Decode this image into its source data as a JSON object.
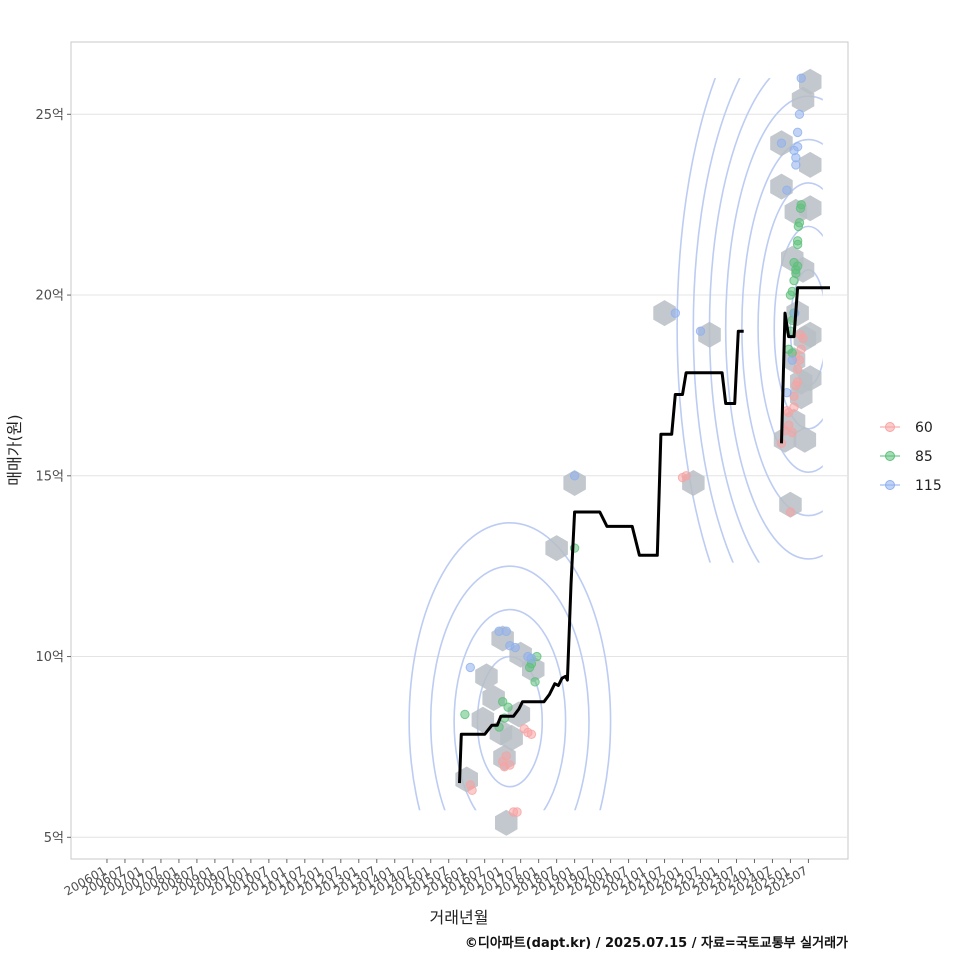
{
  "chart_data": {
    "type": "scatter",
    "title": "",
    "xlabel": "거래년월",
    "ylabel": "매매가(원)",
    "caption": "©디아파트(dapt.kr) / 2025.07.15 / 자료=국토교통부 실거래가",
    "x_tick_labels": [
      "200601",
      "200607",
      "200701",
      "200707",
      "200801",
      "200807",
      "200901",
      "200907",
      "201001",
      "201007",
      "201101",
      "201107",
      "201201",
      "201207",
      "201301",
      "201307",
      "201401",
      "201407",
      "201501",
      "201507",
      "201601",
      "201607",
      "201701",
      "201707",
      "201801",
      "201807",
      "201901",
      "201907",
      "202001",
      "202007",
      "202101",
      "202107",
      "202201",
      "202207",
      "202301",
      "202307",
      "202401",
      "202407",
      "202501",
      "202507"
    ],
    "y_ticks": [
      5,
      10,
      15,
      20,
      25
    ],
    "y_tick_labels": [
      "5억",
      "10억",
      "15억",
      "20억",
      "25억"
    ],
    "ylim": [
      4.4,
      27.0
    ],
    "xlim": [
      2005.0,
      2026.6
    ],
    "grid": true,
    "legend_position": "right",
    "colors": {
      "60": "#f8a3a3",
      "85": "#5cc07a",
      "115": "#8fb0ee",
      "trend": "#000000",
      "hex": "#b7bec4",
      "contour": "#bcccf2"
    },
    "series": [
      {
        "name": "60",
        "points": [
          [
            2016.1,
            6.45
          ],
          [
            2016.15,
            6.3
          ],
          [
            2017.0,
            7.1
          ],
          [
            2017.05,
            6.95
          ],
          [
            2017.1,
            7.25
          ],
          [
            2017.2,
            7.0
          ],
          [
            2017.3,
            5.7
          ],
          [
            2017.4,
            5.7
          ],
          [
            2017.6,
            8.0
          ],
          [
            2017.7,
            7.9
          ],
          [
            2017.8,
            7.85
          ],
          [
            2022.0,
            14.95
          ],
          [
            2022.1,
            15.0
          ],
          [
            2024.75,
            15.9
          ],
          [
            2024.85,
            16.25
          ],
          [
            2024.9,
            16.8
          ],
          [
            2024.95,
            16.75
          ],
          [
            2025.0,
            14.0
          ],
          [
            2025.05,
            16.2
          ],
          [
            2025.1,
            16.9
          ],
          [
            2025.15,
            17.5
          ],
          [
            2025.2,
            17.95
          ],
          [
            2025.25,
            18.2
          ],
          [
            2025.3,
            18.5
          ],
          [
            2025.35,
            18.8
          ],
          [
            2025.1,
            17.2
          ],
          [
            2025.2,
            17.6
          ],
          [
            2025.28,
            18.9
          ],
          [
            2025.15,
            18.3
          ],
          [
            2024.95,
            16.4
          ]
        ]
      },
      {
        "name": "85",
        "points": [
          [
            2015.95,
            8.4
          ],
          [
            2016.9,
            8.05
          ],
          [
            2017.0,
            8.75
          ],
          [
            2017.05,
            8.3
          ],
          [
            2017.15,
            8.6
          ],
          [
            2017.75,
            9.7
          ],
          [
            2017.8,
            9.8
          ],
          [
            2017.9,
            9.3
          ],
          [
            2017.95,
            10.0
          ],
          [
            2019.0,
            13.0
          ],
          [
            2024.95,
            18.5
          ],
          [
            2025.0,
            19.0
          ],
          [
            2025.05,
            19.3
          ],
          [
            2025.1,
            19.5
          ],
          [
            2025.0,
            20.0
          ],
          [
            2025.05,
            20.1
          ],
          [
            2025.1,
            20.4
          ],
          [
            2025.15,
            20.6
          ],
          [
            2025.2,
            20.8
          ],
          [
            2025.1,
            20.9
          ],
          [
            2025.2,
            21.5
          ],
          [
            2025.25,
            22.0
          ],
          [
            2025.3,
            22.5
          ],
          [
            2025.2,
            21.4
          ],
          [
            2025.28,
            22.4
          ],
          [
            2025.05,
            18.4
          ],
          [
            2025.15,
            20.7
          ],
          [
            2025.22,
            21.9
          ]
        ]
      },
      {
        "name": "115",
        "points": [
          [
            2016.1,
            9.7
          ],
          [
            2016.9,
            10.7
          ],
          [
            2017.1,
            10.7
          ],
          [
            2017.2,
            10.3
          ],
          [
            2017.35,
            10.25
          ],
          [
            2017.7,
            10.0
          ],
          [
            2017.8,
            9.95
          ],
          [
            2019.0,
            15.0
          ],
          [
            2021.8,
            19.5
          ],
          [
            2022.5,
            19.0
          ],
          [
            2024.75,
            24.2
          ],
          [
            2024.9,
            22.9
          ],
          [
            2025.1,
            24.0
          ],
          [
            2025.15,
            23.6
          ],
          [
            2025.2,
            24.5
          ],
          [
            2025.25,
            25.0
          ],
          [
            2025.3,
            26.0
          ],
          [
            2025.15,
            23.8
          ],
          [
            2025.2,
            24.1
          ],
          [
            2024.9,
            17.3
          ],
          [
            2025.05,
            18.2
          ],
          [
            2025.12,
            19.5
          ]
        ]
      }
    ],
    "trend_line": [
      [
        2015.8,
        6.5
      ],
      [
        2015.85,
        7.85
      ],
      [
        2016.5,
        7.85
      ],
      [
        2016.7,
        8.1
      ],
      [
        2016.85,
        8.1
      ],
      [
        2016.95,
        8.35
      ],
      [
        2017.3,
        8.35
      ],
      [
        2017.45,
        8.55
      ],
      [
        2017.55,
        8.75
      ],
      [
        2018.15,
        8.75
      ],
      [
        2018.3,
        8.95
      ],
      [
        2018.45,
        9.25
      ],
      [
        2018.55,
        9.2
      ],
      [
        2018.65,
        9.4
      ],
      [
        2018.75,
        9.45
      ],
      [
        2018.8,
        9.35
      ],
      [
        2018.9,
        12.0
      ],
      [
        2019.0,
        14.0
      ],
      [
        2019.7,
        14.0
      ],
      [
        2019.9,
        13.6
      ],
      [
        2020.6,
        13.6
      ],
      [
        2020.8,
        12.8
      ],
      [
        2021.3,
        12.8
      ],
      [
        2021.4,
        16.15
      ],
      [
        2021.7,
        16.15
      ],
      [
        2021.8,
        17.25
      ],
      [
        2022.0,
        17.25
      ],
      [
        2022.1,
        17.85
      ],
      [
        2023.1,
        17.85
      ],
      [
        2023.2,
        17.0
      ],
      [
        2023.45,
        17.0
      ],
      [
        2023.55,
        19.0
      ],
      [
        2023.7,
        19.0
      ]
    ],
    "trend_line_2": [
      [
        2024.75,
        15.9
      ],
      [
        2024.85,
        19.5
      ],
      [
        2024.95,
        18.85
      ],
      [
        2025.1,
        18.85
      ],
      [
        2025.2,
        20.2
      ],
      [
        2026.1,
        20.2
      ]
    ],
    "hexbins": [
      [
        2016.0,
        6.6
      ],
      [
        2017.1,
        5.4
      ],
      [
        2016.55,
        9.45
      ],
      [
        2016.75,
        8.85
      ],
      [
        2016.95,
        7.9
      ],
      [
        2017.25,
        7.75
      ],
      [
        2017.0,
        10.5
      ],
      [
        2017.5,
        10.05
      ],
      [
        2017.85,
        9.65
      ],
      [
        2017.45,
        8.4
      ],
      [
        2016.45,
        8.25
      ],
      [
        2017.05,
        7.2
      ],
      [
        2018.5,
        13.0
      ],
      [
        2019.0,
        14.8
      ],
      [
        2021.5,
        19.5
      ],
      [
        2022.3,
        14.8
      ],
      [
        2022.75,
        18.9
      ],
      [
        2024.75,
        24.2
      ],
      [
        2024.75,
        23.0
      ],
      [
        2025.05,
        21.0
      ],
      [
        2025.15,
        22.3
      ],
      [
        2025.35,
        25.4
      ],
      [
        2025.55,
        25.9
      ],
      [
        2025.55,
        23.6
      ],
      [
        2025.55,
        22.4
      ],
      [
        2025.2,
        19.5
      ],
      [
        2025.4,
        18.8
      ],
      [
        2025.55,
        18.9
      ],
      [
        2025.1,
        18.2
      ],
      [
        2025.3,
        17.6
      ],
      [
        2025.55,
        17.7
      ],
      [
        2025.3,
        17.2
      ],
      [
        2025.1,
        16.5
      ],
      [
        2024.85,
        16.0
      ],
      [
        2025.4,
        16.0
      ],
      [
        2025.0,
        14.2
      ],
      [
        2025.35,
        20.7
      ]
    ],
    "contour_groups": [
      {
        "center": [
          2017.2,
          8.2
        ],
        "rx": [
          0.9,
          1.55,
          2.2,
          2.8
        ],
        "ry": [
          1.8,
          3.1,
          4.3,
          5.5
        ],
        "y_min": 5.75
      },
      {
        "center": [
          2025.5,
          19.1
        ],
        "rx": [
          0.5,
          0.95,
          1.4,
          1.85,
          2.3,
          2.75,
          3.2,
          3.65
        ],
        "ry": [
          1.6,
          2.8,
          4.0,
          5.2,
          6.4,
          7.5,
          8.6,
          9.8
        ],
        "y_min": 12.6,
        "y_max": 26.0,
        "x_max": 2025.9
      }
    ]
  }
}
